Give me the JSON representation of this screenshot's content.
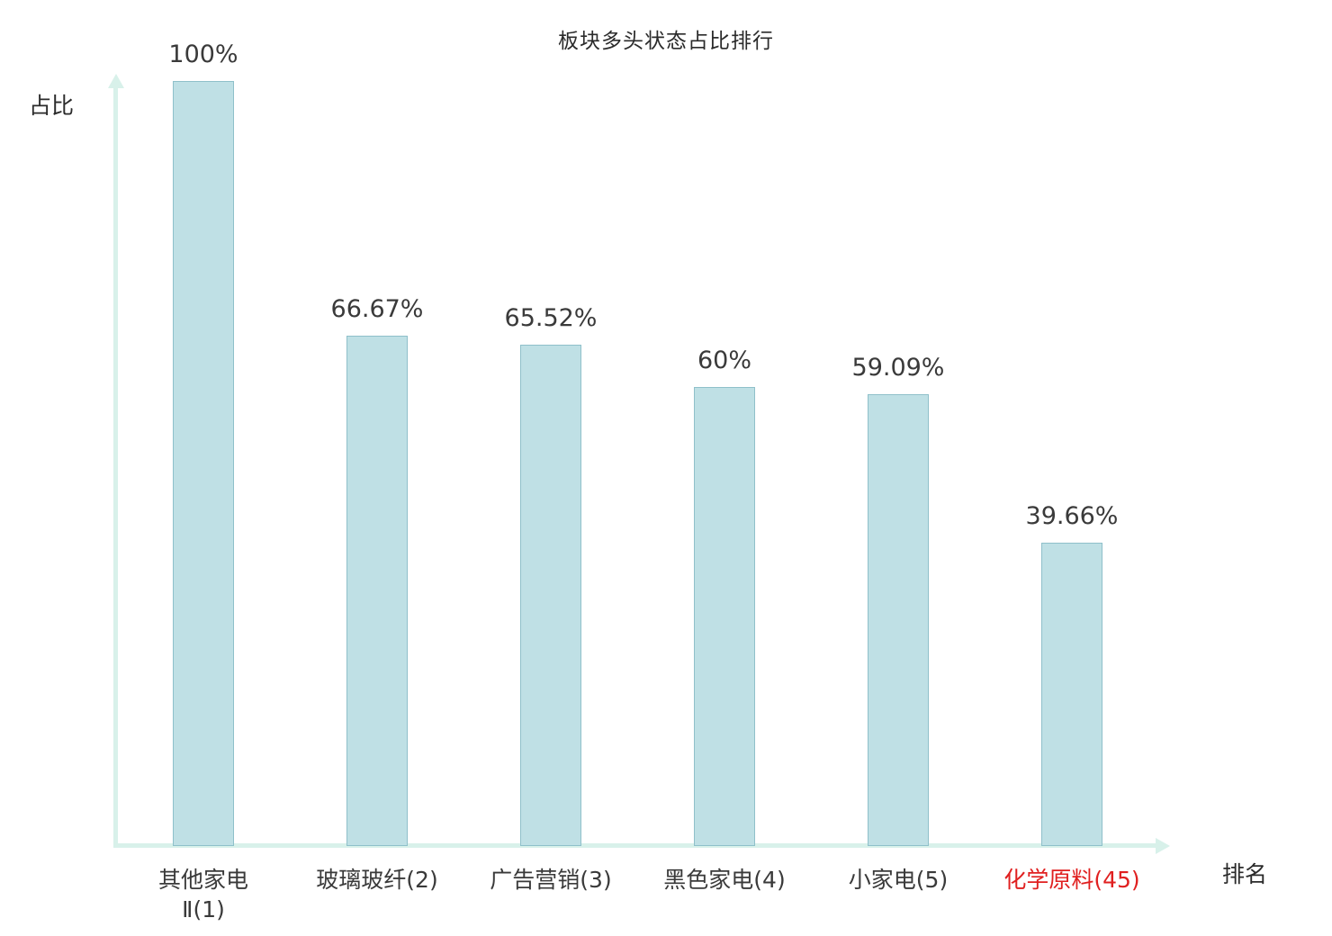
{
  "chart_data": {
    "type": "bar",
    "title": "板块多头状态占比排行",
    "xlabel": "排名",
    "ylabel": "占比",
    "categories": [
      "其他家电\nⅡ(1)",
      "玻璃玻纤(2)",
      "广告营销(3)",
      "黑色家电(4)",
      "小家电(5)",
      "化学原料(45)"
    ],
    "values": [
      100,
      66.67,
      65.52,
      60,
      59.09,
      39.66
    ],
    "value_labels": [
      "100%",
      "66.67%",
      "65.52%",
      "60%",
      "59.09%",
      "39.66%"
    ],
    "ylim": [
      0,
      100
    ],
    "grid": false,
    "legend": "none",
    "highlight_index": 5,
    "colors": {
      "bar_fill": "#bfe0e5",
      "bar_border": "#8fc0ca",
      "axis": "#d8f1ea",
      "text": "#3a3a3a",
      "highlight_text": "#e02020"
    }
  }
}
